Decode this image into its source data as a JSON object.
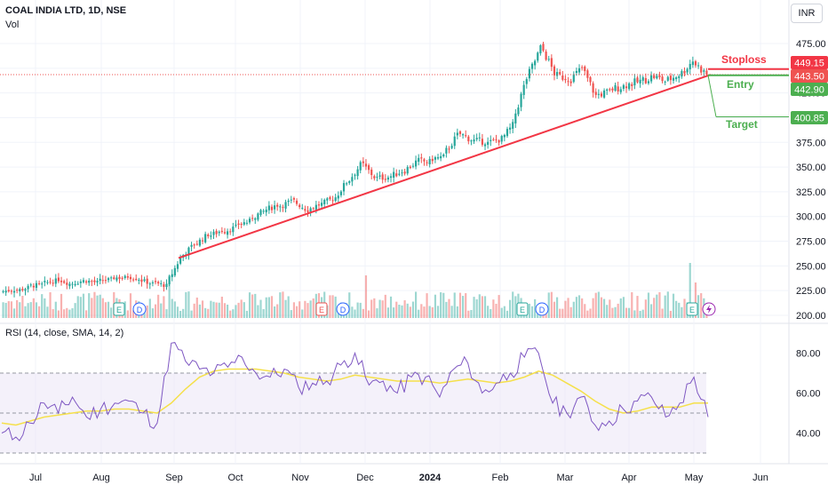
{
  "header": {
    "symbol_title": "COAL INDIA LTD, 1D, NSE",
    "volume_label": "Vol",
    "currency_button": "INR",
    "rsi_label": "RSI (14, close, SMA, 14, 2)"
  },
  "annotations": {
    "stoploss_label": "Stoploss",
    "entry_label": "Entry",
    "target_label": "Target"
  },
  "price_badges": {
    "stoploss": "449.15",
    "last": "443.50",
    "entry": "442.90",
    "target": "400.85"
  },
  "colors": {
    "up": "#26a69a",
    "down": "#ef5350",
    "trendline": "#f23645",
    "stoploss": "#f23645",
    "entry": "#4caf50",
    "target": "#4caf50",
    "rsi": "#7e57c2",
    "rsi_sma": "#f5e04a",
    "rsi_band": "#ede7f6"
  },
  "chart_data": {
    "type": "candlestick",
    "price_axis": {
      "ticks": [
        475,
        450,
        425,
        400,
        375,
        350,
        325,
        300,
        275,
        250,
        225,
        200
      ],
      "tick_labels": [
        "475.00",
        "450.00",
        "425.00",
        "400.00",
        "375.00",
        "350.00",
        "325.00",
        "300.00",
        "275.00",
        "250.00",
        "225.00",
        "200.00"
      ],
      "ylim": [
        200,
        490
      ]
    },
    "month_labels": [
      "Jul",
      "Aug",
      "Sep",
      "Oct",
      "Nov",
      "Dec",
      "2024",
      "Feb",
      "Mar",
      "Apr",
      "May",
      "Jun"
    ],
    "weekly_closes": [
      226,
      228,
      231,
      235,
      232,
      235,
      233,
      236,
      238,
      237,
      232,
      230,
      258,
      272,
      282,
      286,
      289,
      295,
      305,
      312,
      315,
      308,
      312,
      318,
      335,
      352,
      340,
      340,
      346,
      355,
      355,
      360,
      382,
      378,
      376,
      378,
      392,
      440,
      470,
      445,
      440,
      450,
      422,
      426,
      432,
      436,
      441,
      437,
      444,
      458,
      443.5
    ],
    "earnings_markers": [
      "E",
      "D",
      "E",
      "D",
      "E",
      "D",
      "E"
    ],
    "trade_levels": {
      "stoploss": 449.15,
      "entry": 442.9,
      "target": 400.85,
      "last": 443.5
    },
    "trendline": {
      "from_label": "Sep",
      "from_price": 258,
      "to_label": "May",
      "to_price": 443.5
    },
    "rsi": {
      "ticks": [
        80,
        60,
        40
      ],
      "tick_labels": [
        "80.00",
        "60.00",
        "40.00"
      ],
      "ylim": [
        32,
        90
      ],
      "upper_band": 70,
      "middle": 50,
      "lower_band": 30,
      "values": [
        40,
        38,
        45,
        55,
        50,
        58,
        48,
        52,
        55,
        56,
        50,
        45,
        85,
        76,
        72,
        70,
        73,
        78,
        70,
        68,
        72,
        63,
        65,
        66,
        74,
        80,
        64,
        66,
        60,
        68,
        68,
        58,
        72,
        75,
        60,
        65,
        70,
        78,
        80,
        55,
        50,
        58,
        44,
        46,
        52,
        56,
        58,
        48,
        55,
        68,
        48
      ],
      "sma": [
        45,
        44,
        46,
        48,
        49,
        50,
        51,
        51,
        52,
        52,
        51,
        50,
        55,
        62,
        68,
        71,
        72,
        72,
        72,
        71,
        70,
        68,
        67,
        66,
        67,
        69,
        68,
        67,
        66,
        66,
        66,
        65,
        66,
        67,
        66,
        65,
        66,
        68,
        71,
        69,
        65,
        61,
        56,
        52,
        50,
        51,
        53,
        53,
        53,
        55,
        55
      ]
    }
  }
}
